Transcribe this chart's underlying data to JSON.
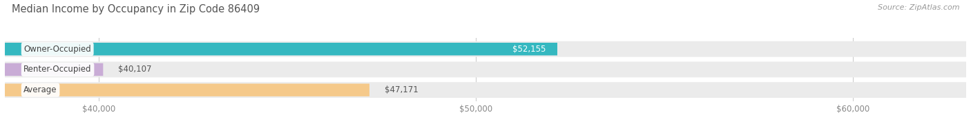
{
  "title": "Median Income by Occupancy in Zip Code 86409",
  "source": "Source: ZipAtlas.com",
  "categories": [
    "Owner-Occupied",
    "Renter-Occupied",
    "Average"
  ],
  "values": [
    52155,
    40107,
    47171
  ],
  "labels": [
    "$52,155",
    "$40,107",
    "$47,171"
  ],
  "bar_colors": [
    "#35b8c0",
    "#c9acd6",
    "#f5c98a"
  ],
  "xlim_min": 37500,
  "xlim_max": 63000,
  "xticks": [
    40000,
    50000,
    60000
  ],
  "xtick_labels": [
    "$40,000",
    "$50,000",
    "$60,000"
  ],
  "background_color": "#ffffff",
  "bar_bg_color": "#ebebeb",
  "title_fontsize": 10.5,
  "source_fontsize": 8,
  "label_fontsize": 8.5,
  "tick_fontsize": 8.5,
  "cat_fontsize": 8.5
}
